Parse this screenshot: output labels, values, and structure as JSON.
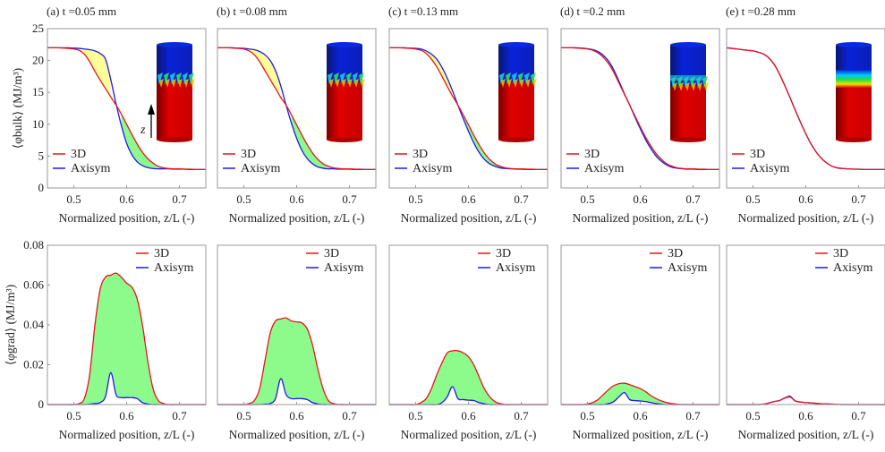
{
  "chart_data": [
    {
      "type": "line",
      "panel": "a",
      "title": "(a) t =0.05 mm",
      "xlabel": "Normalized position, z/L (-)",
      "ylabel": "⟨φbulk⟩ (MJ/m³)",
      "xlim": [
        0.45,
        0.75
      ],
      "ylim": [
        0,
        25
      ],
      "xticks": [
        "0.5",
        "0.6",
        "0.7"
      ],
      "yticks": [
        "0",
        "5",
        "10",
        "15",
        "20",
        "25"
      ],
      "legend": "bottom-left",
      "fill": "yellow where Axisym above 3D, green where 3D above Axisym",
      "inset": "cylinder",
      "inset_label": "z",
      "series": [
        {
          "name": "3D",
          "color": "#e8141c",
          "values": [
            22,
            22,
            22,
            21.95,
            21.9,
            21.8,
            21.6,
            21.0,
            19.8,
            18.3,
            16.9,
            15.6,
            14.3,
            13.0,
            11.6,
            10.0,
            8.4,
            6.9,
            5.6,
            4.6,
            3.9,
            3.4,
            3.15,
            3.05,
            3.0,
            3.0,
            2.95,
            2.95,
            2.9,
            2.9,
            2.9
          ]
        },
        {
          "name": "Axisym",
          "color": "#1a1aee",
          "values": [
            22,
            22,
            22,
            22,
            22,
            21.95,
            21.9,
            21.8,
            21.7,
            21.5,
            21.1,
            20.2,
            17.0,
            13.2,
            9.8,
            7.0,
            5.2,
            4.1,
            3.5,
            3.2,
            3.05,
            3.0,
            3.0,
            3.0,
            2.95,
            2.95,
            2.95,
            2.9,
            2.9,
            2.9,
            2.9
          ]
        }
      ]
    },
    {
      "type": "line",
      "panel": "b",
      "title": "(b) t =0.08 mm",
      "xlabel": "Normalized position, z/L (-)",
      "xlim": [
        0.45,
        0.75
      ],
      "ylim": [
        0,
        25
      ],
      "xticks": [
        "0.5",
        "0.6",
        "0.7"
      ],
      "legend": "bottom-left",
      "inset": "cylinder",
      "series": [
        {
          "name": "3D",
          "color": "#e8141c",
          "values": [
            22,
            22,
            22,
            21.95,
            21.9,
            21.8,
            21.5,
            20.9,
            19.8,
            18.4,
            17.0,
            15.6,
            14.2,
            13.0,
            11.5,
            9.9,
            8.3,
            6.8,
            5.5,
            4.5,
            3.8,
            3.4,
            3.15,
            3.05,
            3.0,
            3.0,
            2.95,
            2.95,
            2.9,
            2.9,
            2.9
          ]
        },
        {
          "name": "Axisym",
          "color": "#1a1aee",
          "values": [
            22,
            22,
            22,
            22,
            21.95,
            21.9,
            21.8,
            21.7,
            21.4,
            20.9,
            20.0,
            18.4,
            16.0,
            13.0,
            10.2,
            7.8,
            5.9,
            4.6,
            3.8,
            3.3,
            3.1,
            3.0,
            3.0,
            2.95,
            2.95,
            2.95,
            2.9,
            2.9,
            2.9,
            2.9,
            2.9
          ]
        }
      ]
    },
    {
      "type": "line",
      "panel": "c",
      "title": "(c) t =0.13 mm",
      "xlabel": "Normalized position, z/L (-)",
      "xlim": [
        0.45,
        0.75
      ],
      "ylim": [
        0,
        25
      ],
      "xticks": [
        "0.5",
        "0.6",
        "0.7"
      ],
      "legend": "bottom-left",
      "inset": "cylinder",
      "series": [
        {
          "name": "3D",
          "color": "#e8141c",
          "values": [
            22,
            22,
            22,
            21.95,
            21.9,
            21.8,
            21.6,
            21.1,
            20.2,
            19.0,
            17.5,
            15.9,
            14.4,
            13.0,
            11.5,
            9.9,
            8.3,
            6.8,
            5.5,
            4.5,
            3.8,
            3.4,
            3.15,
            3.05,
            3.0,
            3.0,
            2.95,
            2.95,
            2.9,
            2.9,
            2.9
          ]
        },
        {
          "name": "Axisym",
          "color": "#1a1aee",
          "values": [
            22,
            22,
            22,
            22,
            21.95,
            21.9,
            21.8,
            21.5,
            21.0,
            20.2,
            18.9,
            17.2,
            15.2,
            13.0,
            10.9,
            8.9,
            7.1,
            5.6,
            4.5,
            3.8,
            3.4,
            3.15,
            3.05,
            3.0,
            2.95,
            2.95,
            2.9,
            2.9,
            2.9,
            2.9,
            2.9
          ]
        }
      ]
    },
    {
      "type": "line",
      "panel": "d",
      "title": "(d) t =0.2 mm",
      "xlabel": "Normalized position, z/L (-)",
      "xlim": [
        0.45,
        0.75
      ],
      "ylim": [
        0,
        25
      ],
      "xticks": [
        "0.5",
        "0.6",
        "0.7"
      ],
      "legend": "bottom-left",
      "inset": "cylinder",
      "series": [
        {
          "name": "3D",
          "color": "#e8141c",
          "values": [
            22,
            22,
            22,
            21.95,
            21.9,
            21.8,
            21.6,
            21.2,
            20.5,
            19.5,
            18.1,
            16.4,
            14.7,
            13.0,
            11.3,
            9.6,
            8.0,
            6.6,
            5.4,
            4.5,
            3.8,
            3.4,
            3.15,
            3.05,
            3.0,
            3.0,
            2.95,
            2.95,
            2.9,
            2.9,
            2.9
          ]
        },
        {
          "name": "Axisym",
          "color": "#1a1aee",
          "values": [
            22,
            22,
            22,
            22,
            21.95,
            21.85,
            21.7,
            21.4,
            20.8,
            19.9,
            18.5,
            16.7,
            14.8,
            13.0,
            11.1,
            9.3,
            7.6,
            6.2,
            5.0,
            4.2,
            3.6,
            3.25,
            3.1,
            3.0,
            2.95,
            2.95,
            2.9,
            2.9,
            2.9,
            2.9,
            2.9
          ]
        }
      ]
    },
    {
      "type": "line",
      "panel": "e",
      "title": "(e) t =0.28 mm",
      "xlabel": "Normalized position, z/L (-)",
      "xlim": [
        0.45,
        0.75
      ],
      "ylim": [
        0,
        25
      ],
      "xticks": [
        "0.5",
        "0.6",
        "0.7"
      ],
      "legend": "bottom-left",
      "inset": "cylinder",
      "series": [
        {
          "name": "3D",
          "color": "#e8141c",
          "values": [
            22,
            21.9,
            21.8,
            21.7,
            21.6,
            21.5,
            21.3,
            21.0,
            20.4,
            19.4,
            17.9,
            16.1,
            14.2,
            12.2,
            10.3,
            8.5,
            6.9,
            5.6,
            4.6,
            3.9,
            3.4,
            3.15,
            3.05,
            3.0,
            2.95,
            2.95,
            2.9,
            2.9,
            2.9,
            2.9,
            2.9
          ]
        },
        {
          "name": "Axisym",
          "color": "#1a1aee",
          "values": [
            22,
            21.9,
            21.8,
            21.7,
            21.6,
            21.5,
            21.3,
            21.0,
            20.4,
            19.4,
            17.9,
            16.1,
            14.2,
            12.2,
            10.3,
            8.5,
            6.9,
            5.6,
            4.6,
            3.9,
            3.4,
            3.15,
            3.05,
            3.0,
            2.95,
            2.95,
            2.9,
            2.9,
            2.9,
            2.9,
            2.9
          ]
        }
      ]
    },
    {
      "type": "line",
      "panel": "a-bottom",
      "xlabel": "Normalized position, z/L (-)",
      "ylabel": "⟨φgrad⟩ (MJ/m³)",
      "xlim": [
        0.45,
        0.75
      ],
      "ylim": [
        0,
        0.08
      ],
      "xticks": [
        "0.5",
        "0.6",
        "0.7"
      ],
      "yticks": [
        "0",
        "0.02",
        "0.04",
        "0.06",
        "0.08"
      ],
      "legend": "top-right",
      "fill": "green between 3D and Axisym",
      "series": [
        {
          "name": "3D",
          "color": "#e8141c",
          "values": [
            0,
            0,
            0,
            0,
            0,
            0,
            0.0005,
            0.003,
            0.015,
            0.04,
            0.058,
            0.064,
            0.065,
            0.066,
            0.064,
            0.061,
            0.059,
            0.053,
            0.04,
            0.022,
            0.008,
            0.002,
            0.0005,
            0,
            0,
            0,
            0,
            0,
            0,
            0,
            0
          ]
        },
        {
          "name": "Axisym",
          "color": "#1a1aee",
          "values": [
            0,
            0,
            0,
            0,
            0,
            0,
            0,
            0,
            0.0002,
            0.0005,
            0.001,
            0.004,
            0.016,
            0.005,
            0.0035,
            0.0035,
            0.0035,
            0.003,
            0.001,
            0.0003,
            0,
            0,
            0,
            0,
            0,
            0,
            0,
            0,
            0,
            0,
            0
          ]
        }
      ]
    },
    {
      "type": "line",
      "panel": "b-bottom",
      "xlabel": "Normalized position, z/L (-)",
      "xlim": [
        0.45,
        0.75
      ],
      "ylim": [
        0,
        0.08
      ],
      "xticks": [
        "0.5",
        "0.6",
        "0.7"
      ],
      "legend": "top-right",
      "series": [
        {
          "name": "3D",
          "color": "#e8141c",
          "values": [
            0,
            0,
            0,
            0,
            0,
            0,
            0.0005,
            0.002,
            0.008,
            0.022,
            0.036,
            0.042,
            0.043,
            0.0435,
            0.042,
            0.0415,
            0.041,
            0.038,
            0.03,
            0.018,
            0.008,
            0.002,
            0.0005,
            0,
            0,
            0,
            0,
            0,
            0,
            0,
            0
          ]
        },
        {
          "name": "Axisym",
          "color": "#1a1aee",
          "values": [
            0,
            0,
            0,
            0,
            0,
            0,
            0,
            0,
            0,
            0.0002,
            0.0005,
            0.003,
            0.013,
            0.005,
            0.003,
            0.003,
            0.003,
            0.0025,
            0.001,
            0.0003,
            0,
            0,
            0,
            0,
            0,
            0,
            0,
            0,
            0,
            0,
            0
          ]
        }
      ]
    },
    {
      "type": "line",
      "panel": "c-bottom",
      "xlabel": "Normalized position, z/L (-)",
      "xlim": [
        0.45,
        0.75
      ],
      "ylim": [
        0,
        0.08
      ],
      "xticks": [
        "0.5",
        "0.6",
        "0.7"
      ],
      "legend": "top-right",
      "series": [
        {
          "name": "3D",
          "color": "#e8141c",
          "values": [
            0,
            0,
            0,
            0,
            0,
            0,
            0.001,
            0.003,
            0.008,
            0.015,
            0.021,
            0.026,
            0.027,
            0.027,
            0.026,
            0.024,
            0.02,
            0.014,
            0.008,
            0.004,
            0.0015,
            0.0005,
            0,
            0,
            0,
            0,
            0,
            0,
            0,
            0,
            0
          ]
        },
        {
          "name": "Axisym",
          "color": "#1a1aee",
          "values": [
            0,
            0,
            0,
            0,
            0,
            0,
            0,
            0,
            0,
            0,
            0.001,
            0.004,
            0.009,
            0.003,
            0.0025,
            0.0022,
            0.002,
            0.001,
            0.0004,
            0,
            0,
            0,
            0,
            0,
            0,
            0,
            0,
            0,
            0,
            0,
            0
          ]
        }
      ]
    },
    {
      "type": "line",
      "panel": "d-bottom",
      "xlabel": "Normalized position, z/L (-)",
      "xlim": [
        0.45,
        0.75
      ],
      "ylim": [
        0,
        0.08
      ],
      "xticks": [
        "0.5",
        "0.6",
        "0.7"
      ],
      "legend": "top-right",
      "series": [
        {
          "name": "3D",
          "color": "#e8141c",
          "values": [
            0,
            0,
            0,
            0,
            0,
            0.0003,
            0.001,
            0.0025,
            0.005,
            0.0075,
            0.0095,
            0.0105,
            0.0107,
            0.01,
            0.009,
            0.008,
            0.0065,
            0.0045,
            0.003,
            0.0018,
            0.001,
            0.0005,
            0.0002,
            0,
            0,
            0,
            0,
            0,
            0,
            0,
            0
          ]
        },
        {
          "name": "Axisym",
          "color": "#1a1aee",
          "values": [
            0,
            0,
            0,
            0,
            0,
            0,
            0,
            0,
            0,
            0.0005,
            0.0015,
            0.004,
            0.006,
            0.0025,
            0.002,
            0.0018,
            0.0015,
            0.001,
            0.0005,
            0.0002,
            0,
            0,
            0,
            0,
            0,
            0,
            0,
            0,
            0,
            0,
            0
          ]
        }
      ]
    },
    {
      "type": "line",
      "panel": "e-bottom",
      "xlabel": "Normalized position, z/L (-)",
      "xlim": [
        0.45,
        0.75
      ],
      "ylim": [
        0,
        0.08
      ],
      "xticks": [
        "0.5",
        "0.6",
        "0.7"
      ],
      "legend": "top-right",
      "series": [
        {
          "name": "3D",
          "color": "#e8141c",
          "values": [
            0,
            0,
            0,
            0,
            0,
            0,
            0,
            0.0002,
            0.0008,
            0.0015,
            0.002,
            0.0032,
            0.0038,
            0.0018,
            0.0013,
            0.001,
            0.0008,
            0.0006,
            0.0004,
            0.0003,
            0.0002,
            0.0001,
            0,
            0,
            0,
            0,
            0,
            0,
            0,
            0,
            0
          ]
        },
        {
          "name": "Axisym",
          "color": "#1a1aee",
          "values": [
            0,
            0,
            0,
            0,
            0,
            0,
            0,
            0.0002,
            0.0008,
            0.0015,
            0.002,
            0.0033,
            0.0042,
            0.0018,
            0.0013,
            0.001,
            0.0008,
            0.0006,
            0.0004,
            0.0003,
            0.0002,
            0.0001,
            0,
            0,
            0,
            0,
            0,
            0,
            0,
            0,
            0
          ]
        }
      ]
    }
  ],
  "x": [
    0.45,
    0.46,
    0.47,
    0.48,
    0.49,
    0.5,
    0.51,
    0.52,
    0.53,
    0.54,
    0.55,
    0.56,
    0.57,
    0.58,
    0.59,
    0.6,
    0.61,
    0.62,
    0.63,
    0.64,
    0.65,
    0.66,
    0.67,
    0.68,
    0.69,
    0.7,
    0.71,
    0.72,
    0.73,
    0.74,
    0.75
  ],
  "colors": {
    "fill_above": "#ffff99",
    "fill_below": "#8cfb8c",
    "cyl_top": "#0a1fc8",
    "cyl_bottom": "#e00000"
  }
}
